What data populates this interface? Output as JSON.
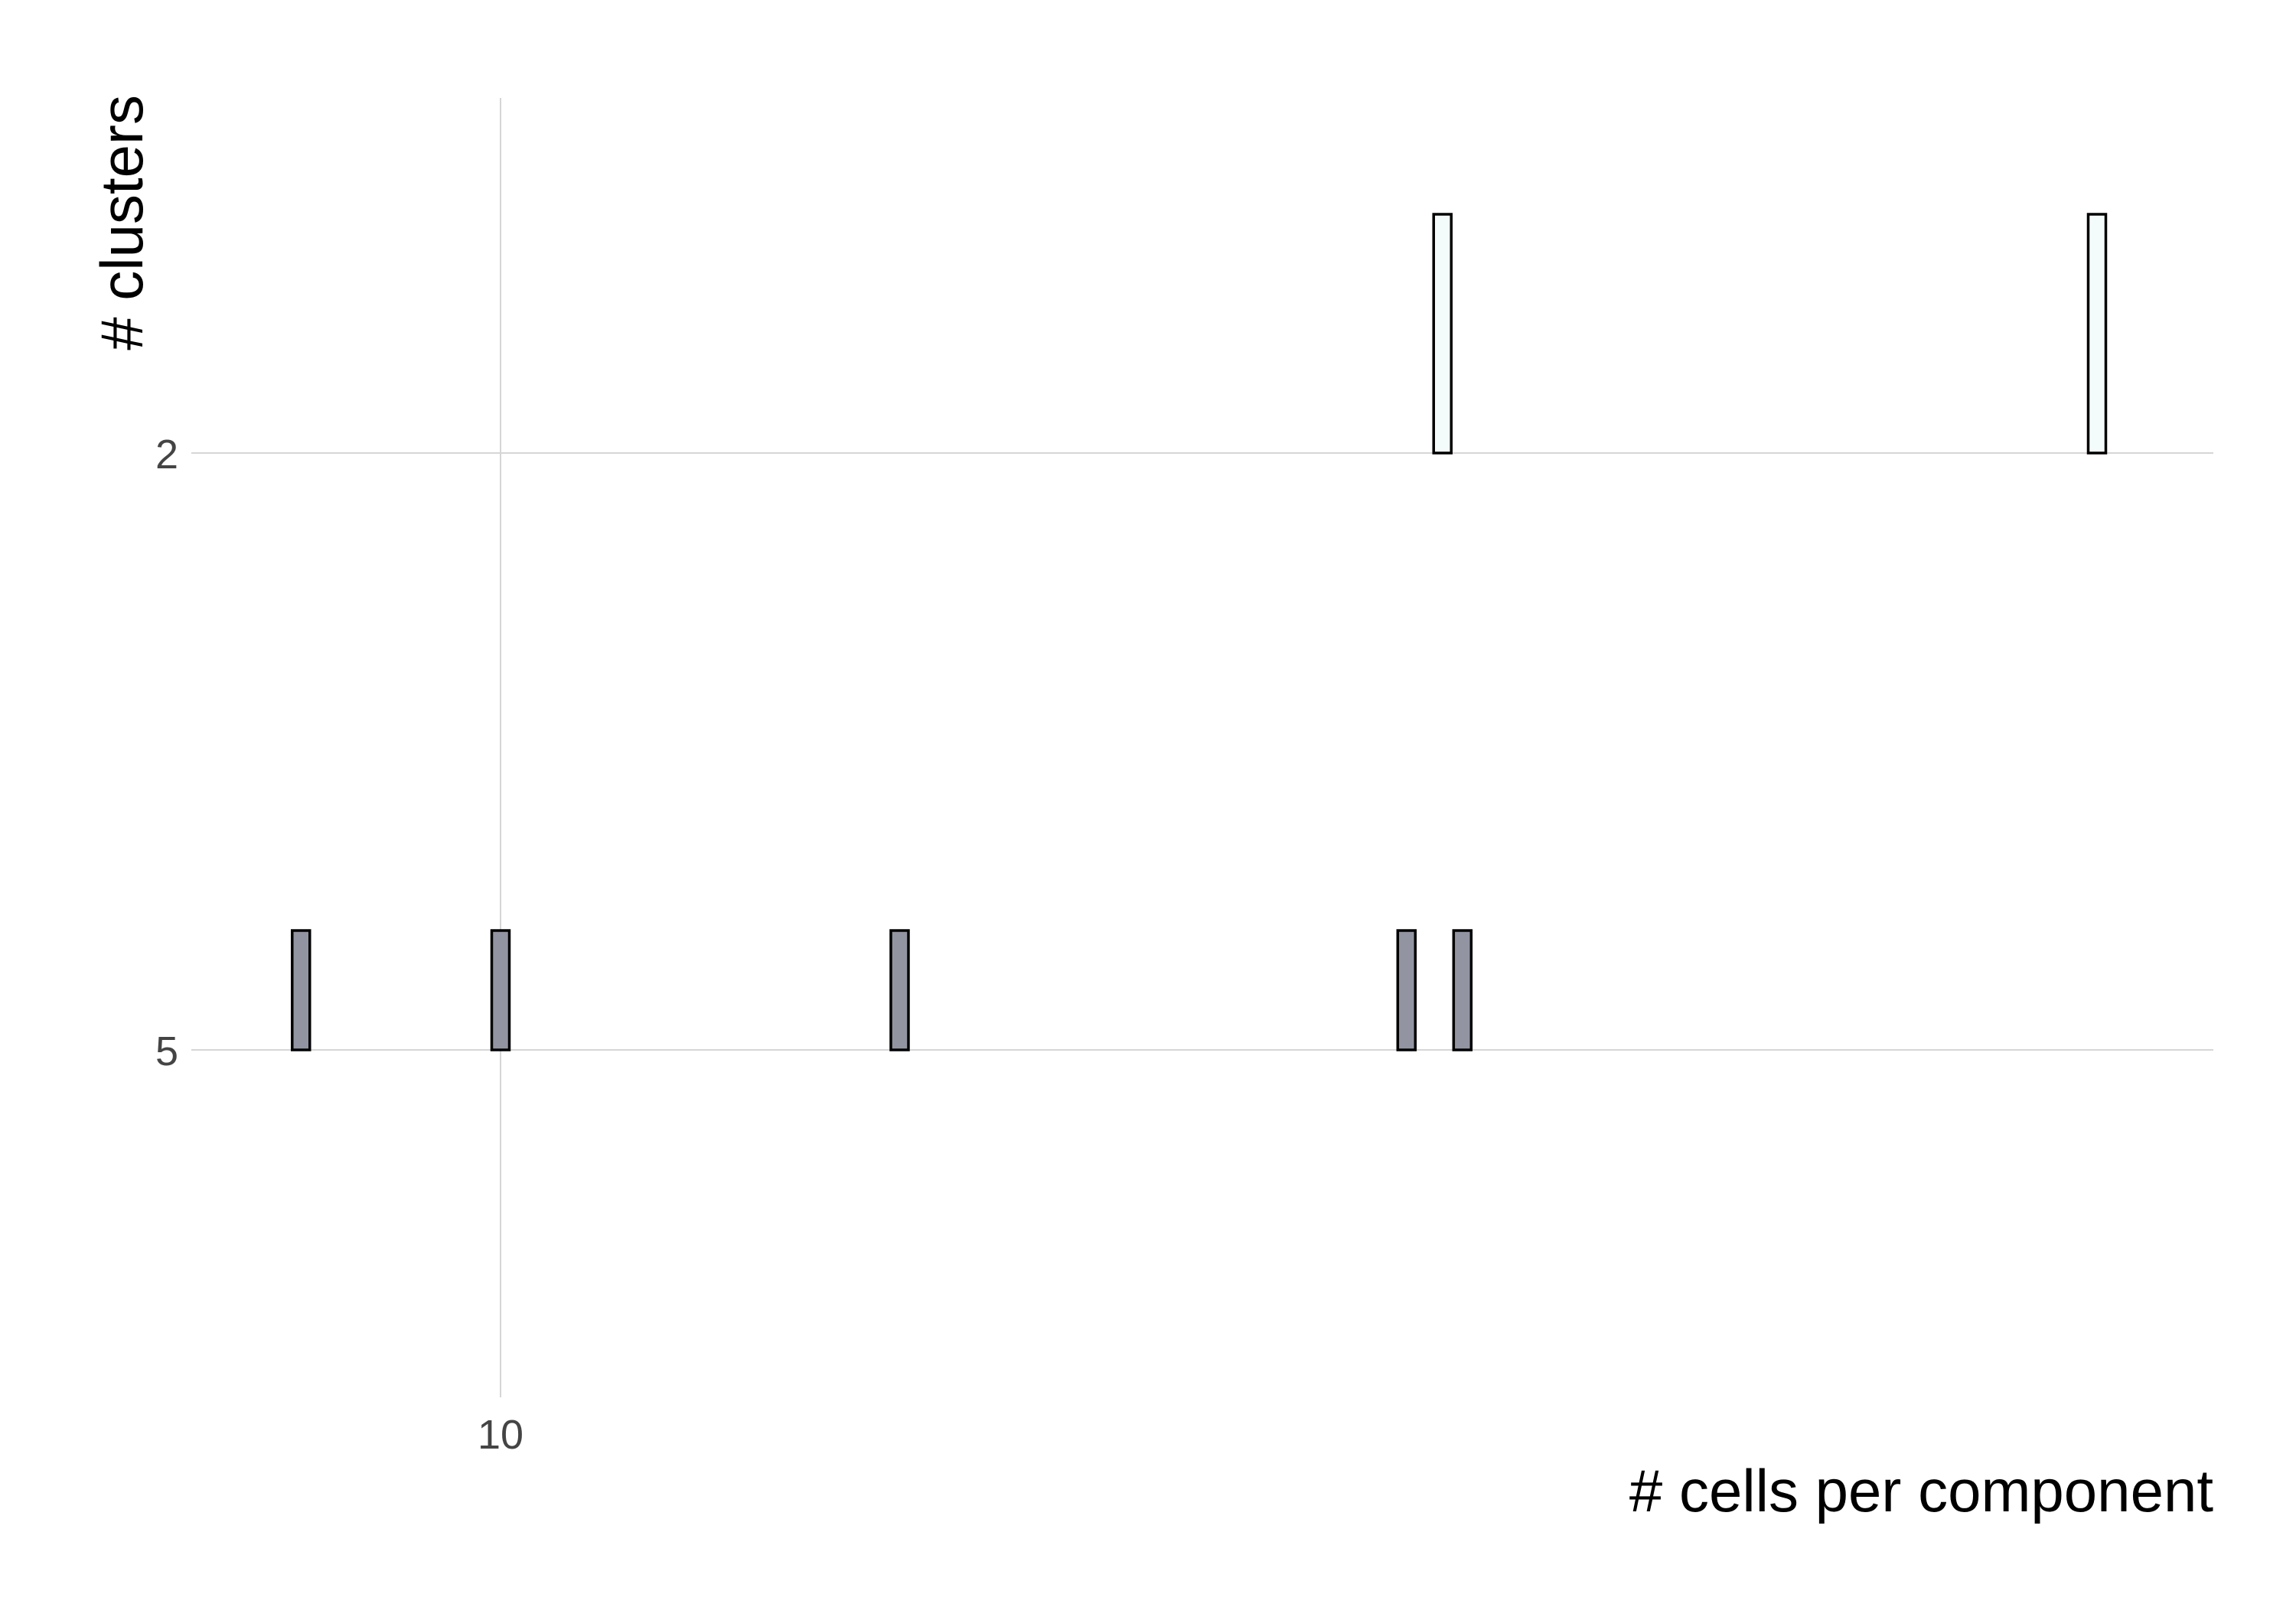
{
  "chart_data": {
    "type": "bar",
    "xlabel": "# cells per component",
    "ylabel": "# clusters",
    "x_ticks": [
      {
        "value": 10,
        "label": "10"
      }
    ],
    "y_ticks": [
      {
        "value": 2,
        "label": "2"
      },
      {
        "value": 5,
        "label": "5"
      }
    ],
    "grid": true,
    "legend": "none",
    "series": [
      {
        "y": 2,
        "fill": "#f3fcfa",
        "values": [
          {
            "x": 33.6,
            "count": 2
          },
          {
            "x": 50.0,
            "count": 2
          }
        ]
      },
      {
        "y": 5,
        "fill": "#9295a1",
        "values": [
          {
            "x": 5.0,
            "count": 1
          },
          {
            "x": 10.0,
            "count": 1
          },
          {
            "x": 20.0,
            "count": 1
          },
          {
            "x": 32.7,
            "count": 1
          },
          {
            "x": 34.1,
            "count": 1
          }
        ]
      }
    ]
  }
}
